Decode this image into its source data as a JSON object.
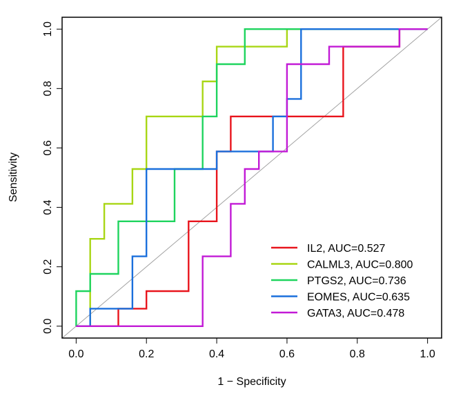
{
  "chart_data": {
    "type": "line",
    "title": "",
    "xlabel": "1 − Specificity",
    "ylabel": "Sensitivity",
    "xlim": [
      -0.04,
      1.04
    ],
    "ylim": [
      -0.04,
      1.04
    ],
    "xticks": [
      "0.0",
      "0.2",
      "0.4",
      "0.6",
      "0.8",
      "1.0"
    ],
    "yticks": [
      "0.0",
      "0.2",
      "0.4",
      "0.6",
      "0.8",
      "1.0"
    ],
    "diagonal": true,
    "legend_position": "bottom-right",
    "series": [
      {
        "name": "IL2, AUC=0.527",
        "color": "#e8141c",
        "points": [
          [
            0,
            0
          ],
          [
            0.12,
            0
          ],
          [
            0.12,
            0.059
          ],
          [
            0.2,
            0.059
          ],
          [
            0.2,
            0.118
          ],
          [
            0.32,
            0.118
          ],
          [
            0.32,
            0.353
          ],
          [
            0.4,
            0.353
          ],
          [
            0.4,
            0.588
          ],
          [
            0.44,
            0.588
          ],
          [
            0.44,
            0.706
          ],
          [
            0.76,
            0.706
          ],
          [
            0.76,
            0.941
          ],
          [
            0.92,
            0.941
          ],
          [
            0.92,
            1
          ],
          [
            1,
            1
          ]
        ]
      },
      {
        "name": "CALML3, AUC=0.800",
        "color": "#a8d614",
        "points": [
          [
            0,
            0
          ],
          [
            0.04,
            0
          ],
          [
            0.04,
            0.294
          ],
          [
            0.08,
            0.294
          ],
          [
            0.08,
            0.412
          ],
          [
            0.16,
            0.412
          ],
          [
            0.16,
            0.529
          ],
          [
            0.2,
            0.529
          ],
          [
            0.2,
            0.706
          ],
          [
            0.36,
            0.706
          ],
          [
            0.36,
            0.824
          ],
          [
            0.4,
            0.824
          ],
          [
            0.4,
            0.941
          ],
          [
            0.6,
            0.941
          ],
          [
            0.6,
            1
          ],
          [
            1,
            1
          ]
        ]
      },
      {
        "name": "PTGS2, AUC=0.736",
        "color": "#1ed45e",
        "points": [
          [
            0,
            0
          ],
          [
            0,
            0.118
          ],
          [
            0.04,
            0.118
          ],
          [
            0.04,
            0.176
          ],
          [
            0.12,
            0.176
          ],
          [
            0.12,
            0.353
          ],
          [
            0.28,
            0.353
          ],
          [
            0.28,
            0.529
          ],
          [
            0.36,
            0.529
          ],
          [
            0.36,
            0.706
          ],
          [
            0.4,
            0.706
          ],
          [
            0.4,
            0.882
          ],
          [
            0.48,
            0.882
          ],
          [
            0.48,
            1
          ],
          [
            1,
            1
          ]
        ]
      },
      {
        "name": "EOMES, AUC=0.635",
        "color": "#1a6fdc",
        "points": [
          [
            0,
            0
          ],
          [
            0.04,
            0
          ],
          [
            0.04,
            0.059
          ],
          [
            0.16,
            0.059
          ],
          [
            0.16,
            0.235
          ],
          [
            0.2,
            0.235
          ],
          [
            0.2,
            0.529
          ],
          [
            0.4,
            0.529
          ],
          [
            0.4,
            0.588
          ],
          [
            0.56,
            0.588
          ],
          [
            0.56,
            0.706
          ],
          [
            0.6,
            0.706
          ],
          [
            0.6,
            0.765
          ],
          [
            0.64,
            0.765
          ],
          [
            0.64,
            1
          ],
          [
            1,
            1
          ]
        ]
      },
      {
        "name": "GATA3, AUC=0.478",
        "color": "#c21ad6",
        "points": [
          [
            0,
            0
          ],
          [
            0.36,
            0
          ],
          [
            0.36,
            0.235
          ],
          [
            0.44,
            0.235
          ],
          [
            0.44,
            0.412
          ],
          [
            0.48,
            0.412
          ],
          [
            0.48,
            0.529
          ],
          [
            0.52,
            0.529
          ],
          [
            0.52,
            0.588
          ],
          [
            0.6,
            0.588
          ],
          [
            0.6,
            0.882
          ],
          [
            0.72,
            0.882
          ],
          [
            0.72,
            0.941
          ],
          [
            0.92,
            0.941
          ],
          [
            0.92,
            1
          ],
          [
            1,
            1
          ]
        ]
      }
    ]
  }
}
